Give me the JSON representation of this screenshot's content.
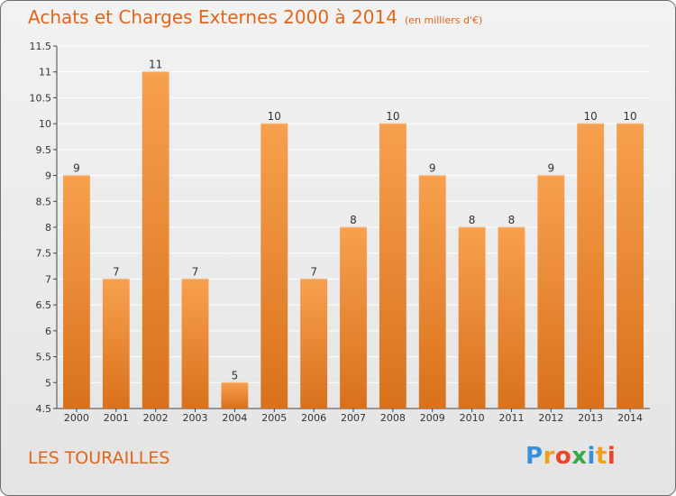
{
  "title": "Achats et Charges Externes 2000 à 2014",
  "unit": "(en milliers d'€)",
  "place": "LES TOURAILLES",
  "logo": {
    "letters": [
      {
        "char": "P",
        "color": "#3b8fd9"
      },
      {
        "char": "r",
        "color": "#f0a020"
      },
      {
        "char": "o",
        "color": "#e8452a"
      },
      {
        "char": "x",
        "color": "#3aa84a"
      },
      {
        "char": "i",
        "color": "#3b8fd9"
      },
      {
        "char": "t",
        "color": "#f0a020"
      },
      {
        "char": "i",
        "color": "#e8452a"
      }
    ]
  },
  "colors": {
    "bar_light": "#f7a04e",
    "bar_dark": "#d9711c",
    "accent": "#e0661a"
  },
  "chart_data": {
    "type": "bar",
    "categories": [
      "2000",
      "2001",
      "2002",
      "2003",
      "2004",
      "2005",
      "2006",
      "2007",
      "2008",
      "2009",
      "2010",
      "2011",
      "2012",
      "2013",
      "2014"
    ],
    "values": [
      9,
      7,
      11,
      7,
      5,
      10,
      7,
      8,
      10,
      9,
      8,
      8,
      9,
      10,
      10
    ],
    "value_labels": [
      "9",
      "7",
      "11",
      "7",
      "5",
      "10",
      "7",
      "8",
      "10",
      "9",
      "8",
      "8",
      "9",
      "10",
      "10"
    ],
    "ylim": [
      4.5,
      11.5
    ],
    "yticks": [
      4.5,
      5,
      5.5,
      6,
      6.5,
      7,
      7.5,
      8,
      8.5,
      9,
      9.5,
      10,
      10.5,
      11,
      11.5
    ],
    "ytick_labels": [
      "4.5",
      "5",
      "5.5",
      "6",
      "6.5",
      "7",
      "7.5",
      "8",
      "8.5",
      "9",
      "9.5",
      "10",
      "10.5",
      "11",
      "11.5"
    ],
    "grid": true,
    "xlabel": "",
    "ylabel": ""
  }
}
